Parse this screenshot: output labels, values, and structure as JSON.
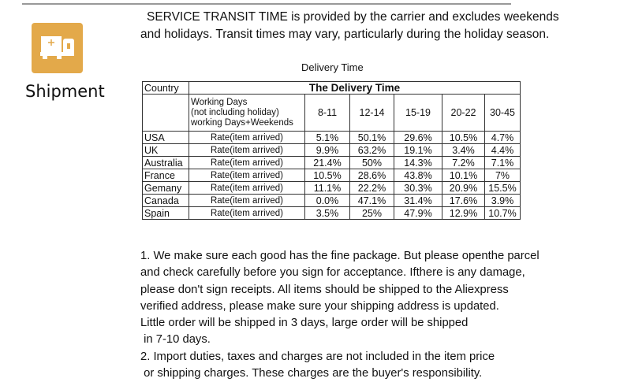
{
  "brand": {
    "title": "Shipment",
    "icon": "truck-icon",
    "accent": "#e3a94a"
  },
  "intro": [
    "SERVICE TRANSIT TIME is provided by the carrier and excludes weekends",
    "and holidays. Transit times may vary, particularly during the holiday season."
  ],
  "table": {
    "caption": "Delivery Time",
    "country_header": "Country",
    "group_header": "The Delivery Time",
    "sub_header": [
      "Working Days",
      "(not including holiday)",
      "working Days+Weekends"
    ],
    "columns": [
      "8-11",
      "12-14",
      "15-19",
      "20-22",
      "30-45"
    ],
    "rows": [
      {
        "country": "USA",
        "label": "Rate(item arrived)",
        "values": [
          "5.1%",
          "50.1%",
          "29.6%",
          "10.5%",
          "4.7%"
        ]
      },
      {
        "country": "UK",
        "label": "Rate(item arrived)",
        "values": [
          "9.9%",
          "63.2%",
          "19.1%",
          "3.4%",
          "4.4%"
        ]
      },
      {
        "country": "Australia",
        "label": "Rate(item arrived)",
        "values": [
          "21.4%",
          "50%",
          "14.3%",
          "7.2%",
          "7.1%"
        ]
      },
      {
        "country": "France",
        "label": "Rate(item arrived)",
        "values": [
          "10.5%",
          "28.6%",
          "43.8%",
          "10.1%",
          "7%"
        ]
      },
      {
        "country": "Gemany",
        "label": "Rate(item arrived)",
        "values": [
          "11.1%",
          "22.2%",
          "30.3%",
          "20.9%",
          "15.5%"
        ]
      },
      {
        "country": "Canada",
        "label": "Rate(item arrived)",
        "values": [
          "0.0%",
          "47.1%",
          "31.4%",
          "17.6%",
          "3.9%"
        ]
      },
      {
        "country": "Spain",
        "label": "Rate(item arrived)",
        "values": [
          "3.5%",
          "25%",
          "47.9%",
          "12.9%",
          "10.7%"
        ]
      }
    ]
  },
  "notes": [
    "1. We make sure each good has the fine package. But please openthe parcel",
    "and check carefully before you sign for acceptance. Ifthere is any damage,",
    "please don't sign receipts. All items should be shipped to the Aliexpress",
    "verified address, please make sure your shipping address is updated.",
    "Little order will be shipped in 3 days, large order will be shipped",
    " in 7-10 days.",
    "2. Import duties, taxes and charges are not included in the item price",
    " or shipping charges. These charges are the buyer's responsibility."
  ]
}
